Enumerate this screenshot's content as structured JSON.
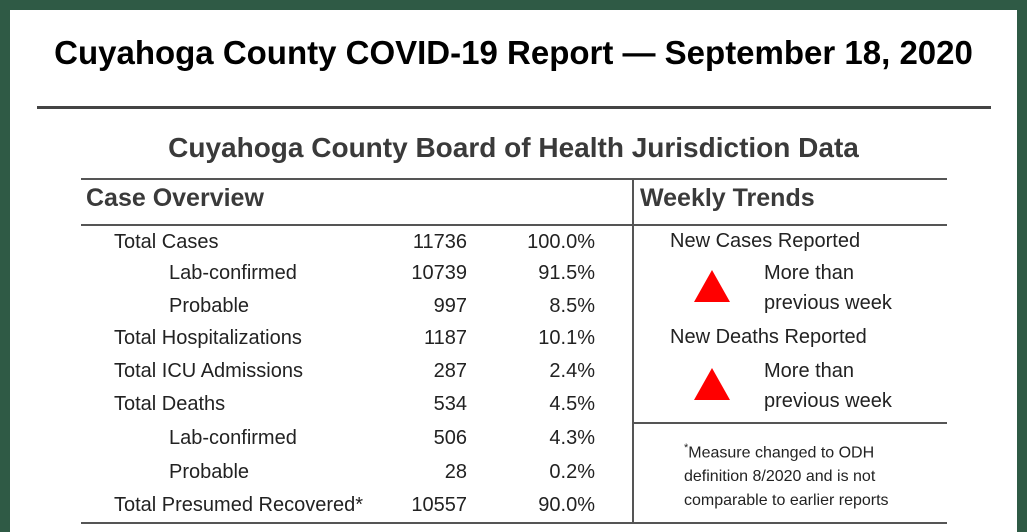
{
  "header": {
    "title": "Cuyahoga County COVID-19 Report — September 18, 2020",
    "subtitle": "Cuyahoga County Board of Health Jurisdiction Data"
  },
  "case_overview": {
    "heading": "Case Overview",
    "rows": [
      {
        "label": "Total Cases",
        "count": "11736",
        "percent": "100.0%"
      },
      {
        "label": "Lab-confirmed",
        "count": "10739",
        "percent": "91.5%"
      },
      {
        "label": "Probable",
        "count": "997",
        "percent": "8.5%"
      },
      {
        "label": "Total Hospitalizations",
        "count": "1187",
        "percent": "10.1%"
      },
      {
        "label": "Total ICU Admissions",
        "count": "287",
        "percent": "2.4%"
      },
      {
        "label": "Total Deaths",
        "count": "534",
        "percent": "4.5%"
      },
      {
        "label": "Lab-confirmed",
        "count": "506",
        "percent": "4.3%"
      },
      {
        "label": "Probable",
        "count": "28",
        "percent": "0.2%"
      },
      {
        "label": "Total Presumed Recovered*",
        "count": "10557",
        "percent": "90.0%"
      }
    ]
  },
  "weekly_trends": {
    "heading": "Weekly Trends",
    "items": [
      {
        "label": "New Cases Reported",
        "direction_icon": "up-triangle-icon",
        "description_line1": "More than",
        "description_line2": "previous week"
      },
      {
        "label": "New Deaths Reported",
        "direction_icon": "up-triangle-icon",
        "description_line1": "More than",
        "description_line2": "previous week"
      }
    ],
    "note_marker": "*",
    "note_line1": "Measure changed to ODH",
    "note_line2": "definition 8/2020 and is not",
    "note_line3": "comparable to earlier reports"
  },
  "colors": {
    "frame": "#2f5a45",
    "increase": "#ff0000"
  }
}
